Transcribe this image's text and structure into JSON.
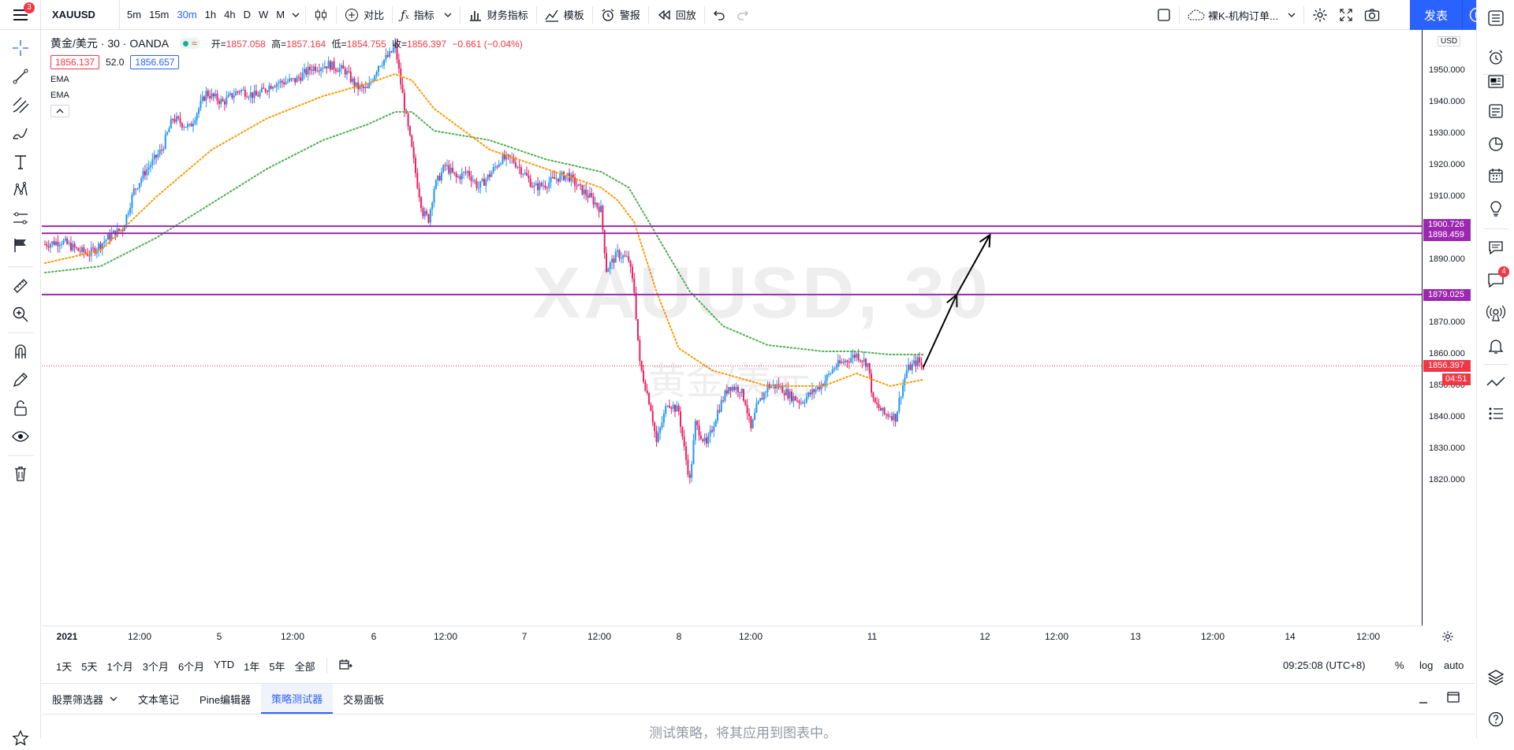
{
  "topbar": {
    "notification_count": "3",
    "symbol": "XAUUSD",
    "intervals": [
      "5m",
      "15m",
      "30m",
      "1h",
      "4h",
      "D",
      "W",
      "M"
    ],
    "active_interval": "30m",
    "compare_label": "对比",
    "indicators_label": "指标",
    "financials_label": "财务指标",
    "templates_label": "模板",
    "alert_label": "警报",
    "replay_label": "回放",
    "layout_name": "裸K-机构订单...",
    "publish_label": "发表"
  },
  "legend": {
    "title": "黄金/美元 · 30 · OANDA",
    "open_label": "开=",
    "open": "1857.058",
    "high_label": "高=",
    "high": "1857.164",
    "low_label": "低=",
    "low": "1854.755",
    "close_label": "收=",
    "close": "1856.397",
    "change": "−0.661 (−0.04%)",
    "bid": "1856.137",
    "spread": "52.0",
    "ask": "1856.657",
    "ema1": "EMA",
    "ema2": "EMA"
  },
  "watermark": {
    "symbol": "XAUUSD, 30",
    "name": "黄金/美元"
  },
  "price_axis": {
    "currency": "USD",
    "ticks": [
      "1950.000",
      "1940.000",
      "1930.000",
      "1920.000",
      "1910.000",
      "1890.000",
      "1870.000",
      "1860.000",
      "1850.000",
      "1840.000",
      "1830.000",
      "1820.000"
    ],
    "tags": {
      "line_1900": "1900.726",
      "line_1898": "1898.459",
      "line_1879": "1879.025",
      "last_price": "1856.397",
      "countdown": "04:51"
    }
  },
  "time_axis": [
    "2021",
    "12:00",
    "5",
    "12:00",
    "6",
    "12:00",
    "7",
    "12:00",
    "8",
    "12:00",
    "11",
    "12",
    "12:00",
    "13",
    "12:00",
    "14",
    "12:00"
  ],
  "range_bar": {
    "ranges": [
      "1天",
      "5天",
      "1个月",
      "3个月",
      "6个月",
      "YTD",
      "1年",
      "5年",
      "全部"
    ],
    "clock": "09:25:08 (UTC+8)",
    "percent": "%",
    "log": "log",
    "auto": "auto"
  },
  "bottom_panel": {
    "tabs": [
      "股票筛选器",
      "文本笔记",
      "Pine编辑器",
      "策略测试器",
      "交易面板"
    ],
    "active_tab": "策略测试器",
    "message": "测试策略，将其应用到图表中。"
  },
  "right_toolbar": {
    "chat_badge": "4"
  },
  "colors": {
    "up": "#2196f3",
    "down": "#e91e63",
    "ema_fast": "#ff9800",
    "ema_slow": "#4caf50",
    "level_line": "#9c27b0",
    "accent": "#2962ff",
    "last_price": "#f23645"
  },
  "chart_data": {
    "type": "candlestick",
    "symbol": "XAUUSD",
    "timeframe": "30",
    "ylim": [
      1815,
      1960
    ],
    "horizontal_levels": [
      1900.726,
      1898.459,
      1879.025
    ],
    "last_price": 1856.397,
    "price_path": [
      [
        0,
        1895
      ],
      [
        3,
        1896
      ],
      [
        6,
        1893
      ],
      [
        8,
        1892
      ],
      [
        10,
        1895
      ],
      [
        12,
        1898
      ],
      [
        14,
        1900
      ],
      [
        16,
        1912
      ],
      [
        18,
        1918
      ],
      [
        21,
        1925
      ],
      [
        23,
        1935
      ],
      [
        26,
        1932
      ],
      [
        29,
        1943
      ],
      [
        32,
        1940
      ],
      [
        35,
        1944
      ],
      [
        38,
        1942
      ],
      [
        41,
        1946
      ],
      [
        45,
        1947
      ],
      [
        48,
        1951
      ],
      [
        51,
        1952
      ],
      [
        54,
        1950
      ],
      [
        56,
        1945
      ],
      [
        58,
        1944
      ],
      [
        60,
        1952
      ],
      [
        62,
        1955
      ],
      [
        63,
        1958
      ],
      [
        64,
        1946
      ],
      [
        65,
        1935
      ],
      [
        66,
        1925
      ],
      [
        67,
        1914
      ],
      [
        68,
        1905
      ],
      [
        69,
        1903
      ],
      [
        70,
        1913
      ],
      [
        72,
        1920
      ],
      [
        74,
        1916
      ],
      [
        76,
        1918
      ],
      [
        78,
        1913
      ],
      [
        80,
        1917
      ],
      [
        82,
        1922
      ],
      [
        84,
        1922
      ],
      [
        86,
        1918
      ],
      [
        88,
        1913
      ],
      [
        90,
        1914
      ],
      [
        92,
        1916
      ],
      [
        94,
        1917
      ],
      [
        96,
        1913
      ],
      [
        98,
        1910
      ],
      [
        100,
        1906
      ],
      [
        101,
        1887
      ],
      [
        103,
        1892
      ],
      [
        105,
        1890
      ],
      [
        106,
        1880
      ],
      [
        107,
        1857
      ],
      [
        109,
        1843
      ],
      [
        110,
        1832
      ],
      [
        112,
        1845
      ],
      [
        114,
        1842
      ],
      [
        115,
        1830
      ],
      [
        116,
        1820
      ],
      [
        117,
        1838
      ],
      [
        119,
        1831
      ],
      [
        121,
        1842
      ],
      [
        123,
        1850
      ],
      [
        125,
        1849
      ],
      [
        126,
        1845
      ],
      [
        127,
        1836
      ],
      [
        128,
        1843
      ],
      [
        130,
        1850
      ],
      [
        132,
        1850
      ],
      [
        134,
        1847
      ],
      [
        136,
        1845
      ],
      [
        138,
        1848
      ],
      [
        140,
        1851
      ],
      [
        142,
        1856
      ],
      [
        144,
        1858
      ],
      [
        146,
        1860
      ],
      [
        148,
        1857
      ],
      [
        149,
        1845
      ],
      [
        151,
        1841
      ],
      [
        152,
        1841
      ],
      [
        153,
        1840
      ],
      [
        154,
        1848
      ],
      [
        155,
        1855
      ],
      [
        157,
        1858
      ],
      [
        158,
        1856
      ]
    ],
    "ema_fast_path": [
      [
        0,
        1889
      ],
      [
        10,
        1893
      ],
      [
        20,
        1910
      ],
      [
        30,
        1925
      ],
      [
        40,
        1935
      ],
      [
        50,
        1942
      ],
      [
        58,
        1946
      ],
      [
        63,
        1949
      ],
      [
        66,
        1947
      ],
      [
        70,
        1938
      ],
      [
        80,
        1925
      ],
      [
        90,
        1919
      ],
      [
        100,
        1913
      ],
      [
        103,
        1909
      ],
      [
        106,
        1902
      ],
      [
        110,
        1880
      ],
      [
        114,
        1862
      ],
      [
        120,
        1855
      ],
      [
        130,
        1850
      ],
      [
        140,
        1850
      ],
      [
        146,
        1854
      ],
      [
        152,
        1850
      ],
      [
        158,
        1852
      ]
    ],
    "ema_slow_path": [
      [
        0,
        1886
      ],
      [
        10,
        1888
      ],
      [
        20,
        1897
      ],
      [
        30,
        1908
      ],
      [
        40,
        1919
      ],
      [
        50,
        1928
      ],
      [
        58,
        1933
      ],
      [
        63,
        1937
      ],
      [
        66,
        1937
      ],
      [
        70,
        1931
      ],
      [
        80,
        1928
      ],
      [
        90,
        1922
      ],
      [
        100,
        1918
      ],
      [
        105,
        1913
      ],
      [
        110,
        1898
      ],
      [
        116,
        1880
      ],
      [
        122,
        1869
      ],
      [
        130,
        1863
      ],
      [
        140,
        1861
      ],
      [
        146,
        1861
      ],
      [
        152,
        1860
      ],
      [
        158,
        1860
      ]
    ],
    "projection_arrow": [
      [
        158,
        1856
      ],
      [
        164,
        1879
      ],
      [
        170,
        1898
      ]
    ]
  }
}
